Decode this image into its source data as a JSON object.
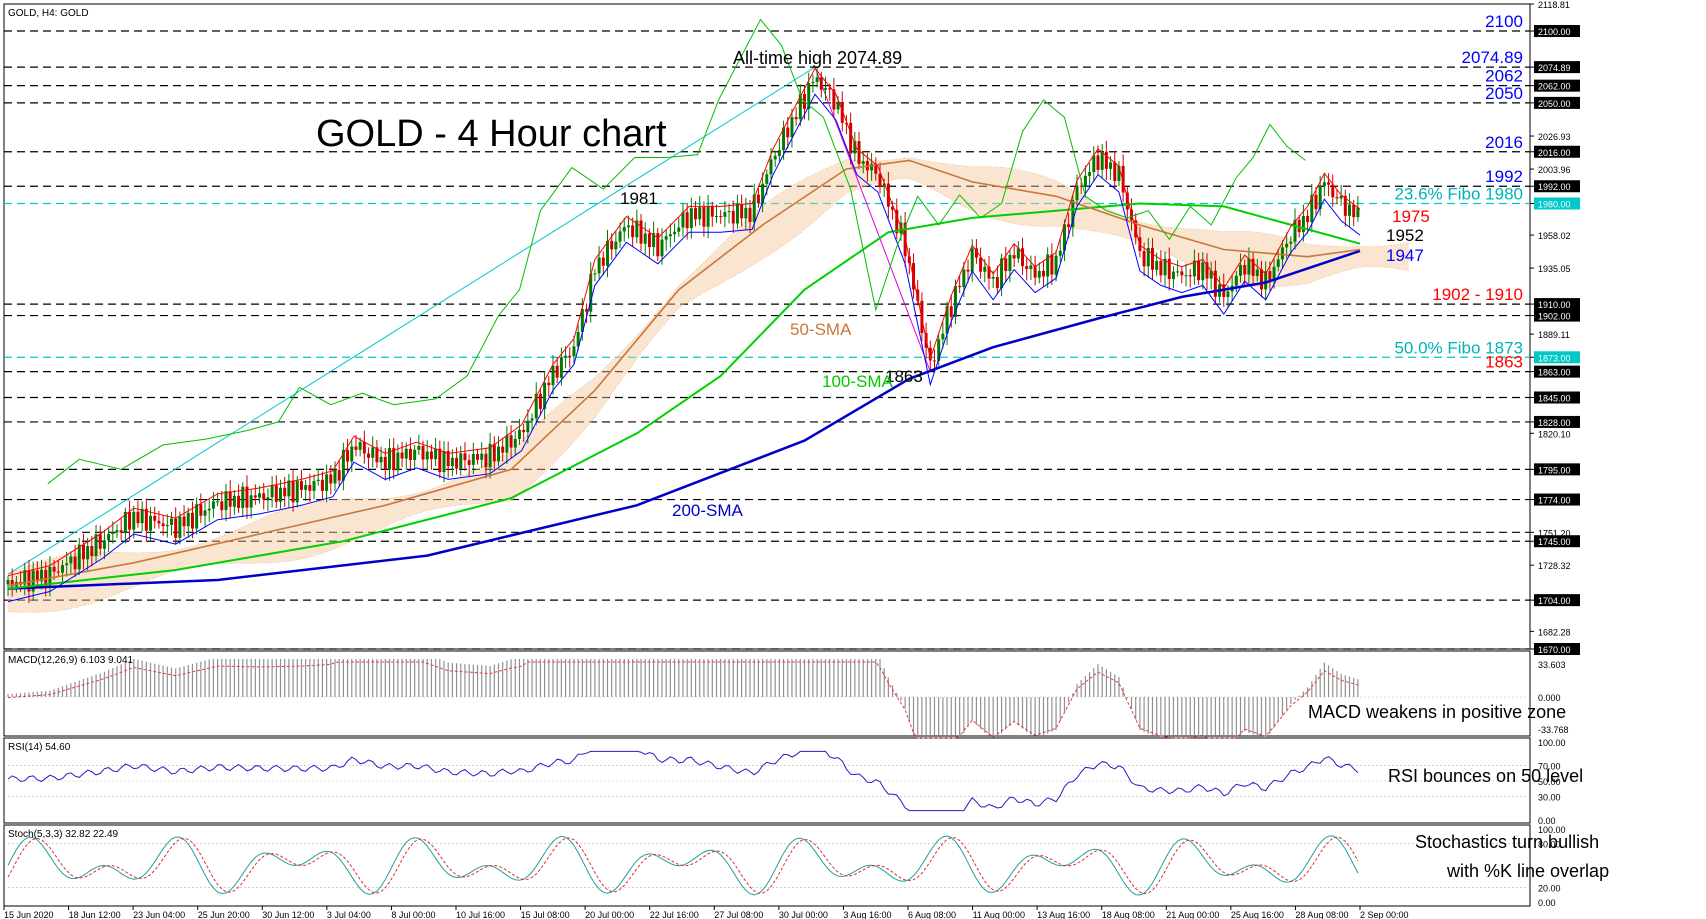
{
  "header": {
    "symbol": "GOLD, H4:  GOLD",
    "title": "GOLD - 4 Hour chart",
    "ath_label": "All-time high 2074.89"
  },
  "panels": {
    "macd": {
      "label": "MACD(12,26,9) 6.103 9.041",
      "comment": "MACD weakens in positive zone",
      "ticks": [
        "33.603",
        "0.000",
        "-33.768"
      ]
    },
    "rsi": {
      "label": "RSI(14) 54.60",
      "comment": "RSI bounces on 50 level",
      "ticks": [
        "100.00",
        "70.00",
        "50.00",
        "30.00",
        "0.00"
      ]
    },
    "stoch": {
      "label": "Stoch(5,3,3) 32.82 22.49",
      "comment_line1": "Stochastics turn bullish",
      "comment_line2": "with %K line overlap",
      "ticks": [
        "100.00",
        "80.00",
        "20.00",
        "0.00"
      ]
    }
  },
  "chart_data": {
    "type": "candlestick",
    "symbol": "GOLD",
    "timeframe": "H4",
    "title": "GOLD - 4 Hour chart",
    "ylim": [
      1670,
      2118.81
    ],
    "price_axis_ticks": [
      2118.81,
      2100.0,
      2074.89,
      2062.0,
      2050.0,
      2026.93,
      2016.0,
      2003.96,
      1992.0,
      1980.0,
      1958.02,
      1935.05,
      1910.0,
      1902.0,
      1889.11,
      1873.0,
      1863.0,
      1845.0,
      1828.0,
      1820.1,
      1795.0,
      1774.0,
      1751.2,
      1745.0,
      1728.32,
      1704.0,
      1682.28,
      1670.0
    ],
    "x_ticks": [
      "15 Jun 2020",
      "18 Jun 12:00",
      "23 Jun 04:00",
      "25 Jun 20:00",
      "30 Jun 12:00",
      "3 Jul 04:00",
      "8 Jul 00:00",
      "10 Jul 16:00",
      "15 Jul 08:00",
      "20 Jul 00:00",
      "22 Jul 16:00",
      "27 Jul 08:00",
      "30 Jul 00:00",
      "3 Aug 16:00",
      "6 Aug 08:00",
      "11 Aug 00:00",
      "13 Aug 16:00",
      "18 Aug 08:00",
      "21 Aug 00:00",
      "25 Aug 16:00",
      "28 Aug 08:00",
      "2 Sep 00:00"
    ],
    "horizontal_levels": [
      {
        "price": 2100,
        "label": "2100",
        "style": "dashed",
        "color": "#000000",
        "label_color": "#0000ff"
      },
      {
        "price": 2074.89,
        "label": "2074.89",
        "style": "dashed",
        "color": "#000000",
        "label_color": "#0000ff"
      },
      {
        "price": 2062,
        "label": "2062",
        "style": "dashed",
        "color": "#000000",
        "label_color": "#0000ff"
      },
      {
        "price": 2050,
        "label": "2050",
        "style": "dashed",
        "color": "#000000",
        "label_color": "#0000ff"
      },
      {
        "price": 2016,
        "label": "2016",
        "style": "dashed",
        "color": "#000000",
        "label_color": "#0000ff"
      },
      {
        "price": 1992,
        "label": "1992",
        "style": "dashed",
        "color": "#000000",
        "label_color": "#0000ff"
      },
      {
        "price": 1980,
        "label": "23.6% Fibo 1980",
        "style": "dashed",
        "color": "#00c8c8",
        "label_color": "#00b4b4"
      },
      {
        "price": 1910,
        "label": "1902 - 1910",
        "style": "dashed",
        "color": "#000000",
        "label_color": "#ff0000"
      },
      {
        "price": 1902,
        "label": "",
        "style": "dashed",
        "color": "#000000",
        "label_color": "#ff0000"
      },
      {
        "price": 1873,
        "label": "50.0% Fibo 1873",
        "style": "dashed",
        "color": "#00c8c8",
        "label_color": "#00b4b4"
      },
      {
        "price": 1863,
        "label": "1863",
        "style": "dashed",
        "color": "#000000",
        "label_color": "#ff0000"
      },
      {
        "price": 1845,
        "label": "",
        "style": "dashed",
        "color": "#000000",
        "label_color": "#000000"
      },
      {
        "price": 1828,
        "label": "",
        "style": "dashed",
        "color": "#000000",
        "label_color": "#000000"
      },
      {
        "price": 1795,
        "label": "",
        "style": "dashed",
        "color": "#000000",
        "label_color": "#000000"
      },
      {
        "price": 1774,
        "label": "",
        "style": "dashed",
        "color": "#000000",
        "label_color": "#000000"
      },
      {
        "price": 1751.2,
        "label": "",
        "style": "dashed",
        "color": "#000000",
        "label_color": "#000000"
      },
      {
        "price": 1745,
        "label": "",
        "style": "dashed",
        "color": "#000000",
        "label_color": "#000000"
      },
      {
        "price": 1704,
        "label": "",
        "style": "dashed",
        "color": "#000000",
        "label_color": "#000000"
      },
      {
        "price": 1670,
        "label": "",
        "style": "dashed",
        "color": "#000000",
        "label_color": "#000000"
      }
    ],
    "highlighted_axis_labels": [
      2100.0,
      2074.89,
      2062.0,
      2050.0,
      2016.0,
      1992.0,
      1980.0,
      1910.0,
      1902.0,
      1873.0,
      1863.0,
      1845.0,
      1828.0,
      1795.0,
      1774.0,
      1745.0,
      1704.0,
      1670.0
    ],
    "annotations": [
      {
        "text": "1981",
        "price": 1981,
        "color": "#000000"
      },
      {
        "text": "1863",
        "price": 1863,
        "color": "#000000"
      },
      {
        "text": "1975",
        "price": 1975,
        "color": "#ff0000"
      },
      {
        "text": "1952",
        "price": 1952,
        "color": "#000000"
      },
      {
        "text": "1947",
        "price": 1947,
        "color": "#0000ff"
      },
      {
        "text": "50-SMA",
        "color": "#c8783c"
      },
      {
        "text": "100-SMA",
        "color": "#00c800"
      },
      {
        "text": "200-SMA",
        "color": "#0000c8"
      }
    ],
    "close_path": [
      [
        0,
        1715
      ],
      [
        20,
        1722
      ],
      [
        45,
        1745
      ],
      [
        60,
        1762
      ],
      [
        80,
        1755
      ],
      [
        100,
        1772
      ],
      [
        120,
        1776
      ],
      [
        140,
        1782
      ],
      [
        155,
        1788
      ],
      [
        165,
        1812
      ],
      [
        180,
        1800
      ],
      [
        195,
        1808
      ],
      [
        210,
        1800
      ],
      [
        230,
        1804
      ],
      [
        245,
        1820
      ],
      [
        260,
        1862
      ],
      [
        270,
        1880
      ],
      [
        280,
        1935
      ],
      [
        295,
        1965
      ],
      [
        310,
        1950
      ],
      [
        325,
        1972
      ],
      [
        340,
        1972
      ],
      [
        355,
        1974
      ],
      [
        365,
        2012
      ],
      [
        375,
        2040
      ],
      [
        385,
        2068
      ],
      [
        395,
        2050
      ],
      [
        405,
        2012
      ],
      [
        415,
        2000
      ],
      [
        428,
        1950
      ],
      [
        440,
        1866
      ],
      [
        450,
        1910
      ],
      [
        460,
        1945
      ],
      [
        470,
        1925
      ],
      [
        480,
        1946
      ],
      [
        490,
        1930
      ],
      [
        500,
        1940
      ],
      [
        510,
        1990
      ],
      [
        520,
        2012
      ],
      [
        530,
        2000
      ],
      [
        540,
        1945
      ],
      [
        550,
        1935
      ],
      [
        560,
        1930
      ],
      [
        570,
        1935
      ],
      [
        580,
        1915
      ],
      [
        590,
        1938
      ],
      [
        600,
        1925
      ],
      [
        612,
        1958
      ],
      [
        620,
        1972
      ],
      [
        628,
        1995
      ],
      [
        636,
        1980
      ],
      [
        645,
        1970
      ]
    ],
    "sma_50": [
      [
        0,
        1714
      ],
      [
        60,
        1730
      ],
      [
        120,
        1750
      ],
      [
        180,
        1770
      ],
      [
        240,
        1795
      ],
      [
        280,
        1850
      ],
      [
        320,
        1920
      ],
      [
        360,
        1965
      ],
      [
        400,
        2004
      ],
      [
        430,
        2010
      ],
      [
        460,
        1995
      ],
      [
        500,
        1985
      ],
      [
        540,
        1965
      ],
      [
        580,
        1948
      ],
      [
        620,
        1943
      ],
      [
        645,
        1948
      ]
    ],
    "sma_100": [
      [
        0,
        1712
      ],
      [
        80,
        1725
      ],
      [
        160,
        1745
      ],
      [
        240,
        1775
      ],
      [
        300,
        1820
      ],
      [
        340,
        1860
      ],
      [
        380,
        1920
      ],
      [
        420,
        1960
      ],
      [
        460,
        1970
      ],
      [
        500,
        1975
      ],
      [
        540,
        1980
      ],
      [
        580,
        1978
      ],
      [
        620,
        1962
      ],
      [
        645,
        1952
      ]
    ],
    "sma_200": [
      [
        0,
        1712
      ],
      [
        100,
        1718
      ],
      [
        200,
        1735
      ],
      [
        300,
        1770
      ],
      [
        380,
        1815
      ],
      [
        430,
        1858
      ],
      [
        470,
        1880
      ],
      [
        520,
        1900
      ],
      [
        560,
        1915
      ],
      [
        600,
        1925
      ],
      [
        645,
        1947
      ]
    ]
  }
}
